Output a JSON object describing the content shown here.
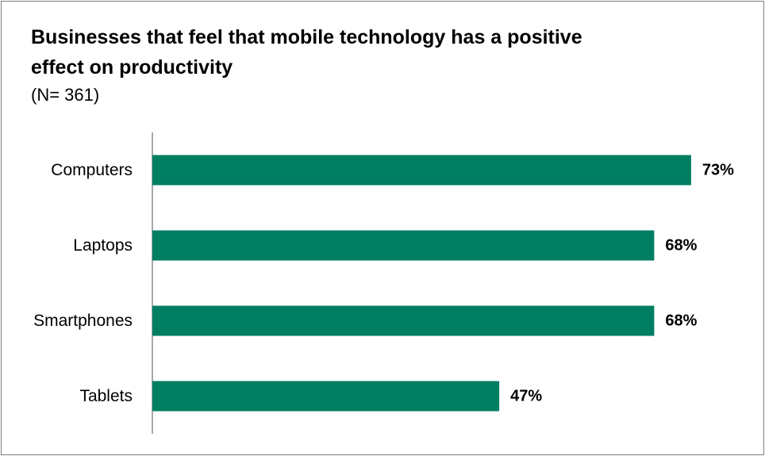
{
  "chart_data": {
    "type": "bar",
    "orientation": "horizontal",
    "title": "Businesses that feel that mobile technology has a positive effect on productivity",
    "subtitle": "(N= 361)",
    "categories": [
      "Computers",
      "Laptops",
      "Smartphones",
      "Tablets"
    ],
    "values": [
      73,
      68,
      68,
      47
    ],
    "value_labels": [
      "73%",
      "68%",
      "68%",
      "47%"
    ],
    "xlim": [
      0,
      100
    ],
    "grid": false,
    "legend": "none",
    "bar_color": "#007e62"
  }
}
